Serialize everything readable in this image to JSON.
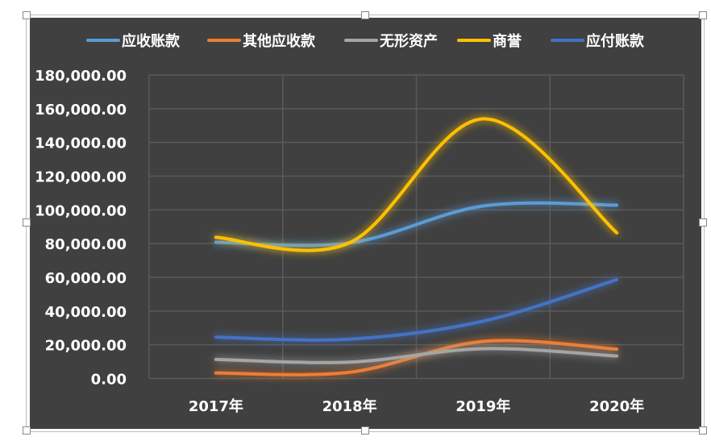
{
  "chart_data": {
    "type": "line",
    "smooth": true,
    "categories": [
      "2017年",
      "2018年",
      "2019年",
      "2020年"
    ],
    "ylim": [
      0,
      180000
    ],
    "yticks": [
      "0.00",
      "20,000.00",
      "40,000.00",
      "60,000.00",
      "80,000.00",
      "100,000.00",
      "120,000.00",
      "140,000.00",
      "160,000.00",
      "180,000.00"
    ],
    "grid": true,
    "legend": "top",
    "background": "#404040",
    "series": [
      {
        "name": "应收账款",
        "color": "#5b9bd5",
        "values": [
          80800,
          80400,
          102300,
          102800
        ]
      },
      {
        "name": "其他应收款",
        "color": "#ed7d31",
        "values": [
          3300,
          3700,
          22000,
          17400
        ]
      },
      {
        "name": "无形资产",
        "color": "#a5a5a5",
        "values": [
          11300,
          9700,
          17700,
          13300
        ]
      },
      {
        "name": "商誉",
        "color": "#ffc000",
        "values": [
          83700,
          80500,
          154000,
          86400
        ]
      },
      {
        "name": "应付账款",
        "color": "#4472c4",
        "values": [
          24500,
          23300,
          34000,
          58600
        ]
      }
    ]
  }
}
